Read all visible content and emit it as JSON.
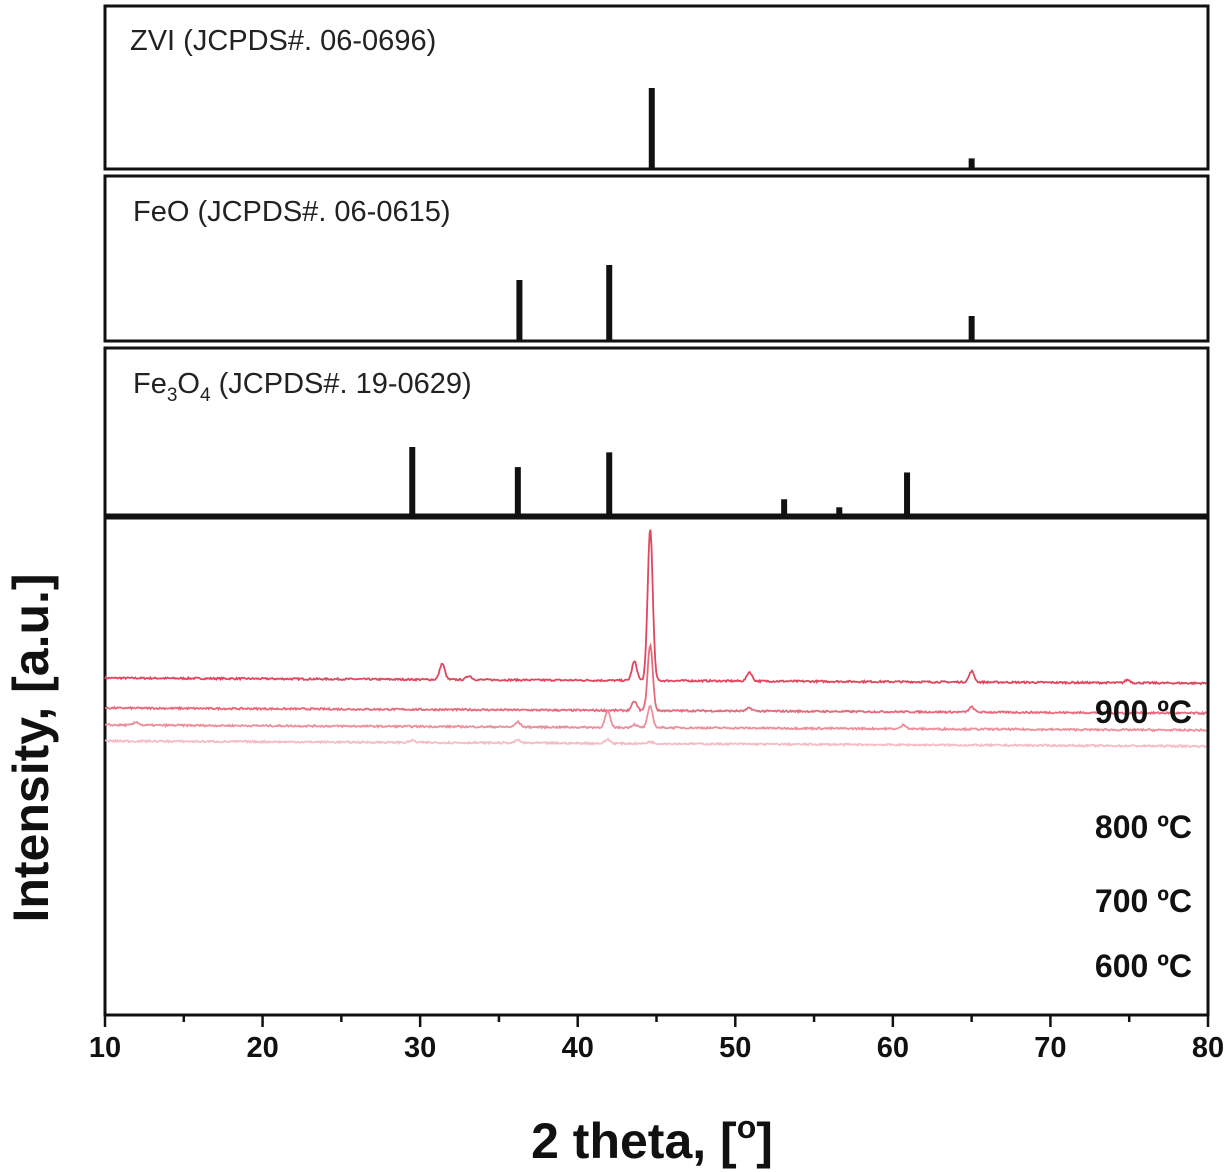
{
  "chart_data": {
    "type": "line",
    "xlabel": "2 theta, [o]",
    "xlabel_main": "2 theta, [",
    "xlabel_sup": "o",
    "xlabel_end": "]",
    "ylabel": "Intensity, [a.u.]",
    "xlim": [
      10,
      80
    ],
    "x_ticks": [
      10,
      20,
      30,
      40,
      50,
      60,
      70,
      80
    ],
    "reference_patterns": [
      {
        "label": "ZVI (JCPDS#. 06-0696)",
        "label_main": "ZVI (JCPDS#. 06-0696)",
        "peaks": [
          {
            "x": 44.7,
            "intensity": 100
          },
          {
            "x": 65.0,
            "intensity": 12
          }
        ]
      },
      {
        "label": "FeO (JCPDS#. 06-0615)",
        "label_main": "FeO (JCPDS#. 06-0615)",
        "peaks": [
          {
            "x": 36.3,
            "intensity": 80
          },
          {
            "x": 42.0,
            "intensity": 100
          },
          {
            "x": 65.0,
            "intensity": 32
          }
        ]
      },
      {
        "label": "Fe3O4 (JCPDS#. 19-0629)",
        "label_parts": [
          "Fe",
          "3",
          "O",
          "4",
          " (JCPDS#. 19-0629)"
        ],
        "peaks": [
          {
            "x": 29.5,
            "intensity": 100
          },
          {
            "x": 36.2,
            "intensity": 70
          },
          {
            "x": 42.0,
            "intensity": 92
          },
          {
            "x": 53.1,
            "intensity": 22
          },
          {
            "x": 56.6,
            "intensity": 10
          },
          {
            "x": 60.9,
            "intensity": 62
          }
        ]
      }
    ],
    "series": [
      {
        "name": "900 ºC",
        "color": "#e0475e",
        "baseline": 2.2,
        "peaks": [
          {
            "x": 31.4,
            "h": 1.6
          },
          {
            "x": 33.1,
            "h": 0.4
          },
          {
            "x": 43.6,
            "h": 1.9
          },
          {
            "x": 44.6,
            "h": 15.2
          },
          {
            "x": 50.9,
            "h": 0.9
          },
          {
            "x": 65.0,
            "h": 1.1
          },
          {
            "x": 74.9,
            "h": 0.3
          }
        ]
      },
      {
        "name": "800 ºC",
        "color": "#e66a7c",
        "baseline": -0.8,
        "peaks": [
          {
            "x": 43.6,
            "h": 0.9
          },
          {
            "x": 44.6,
            "h": 6.6
          },
          {
            "x": 50.9,
            "h": 0.3
          },
          {
            "x": 65.0,
            "h": 0.5
          }
        ]
      },
      {
        "name": "700 ºC",
        "color": "#ec8f9d",
        "baseline": -2.5,
        "peaks": [
          {
            "x": 12.0,
            "h": 0.3
          },
          {
            "x": 36.2,
            "h": 0.5
          },
          {
            "x": 41.9,
            "h": 1.6
          },
          {
            "x": 43.6,
            "h": 0.3
          },
          {
            "x": 44.6,
            "h": 2.1
          },
          {
            "x": 60.7,
            "h": 0.4
          }
        ]
      },
      {
        "name": "600 ºC",
        "color": "#f4bcc5",
        "baseline": -4.1,
        "peaks": [
          {
            "x": 29.5,
            "h": 0.2
          },
          {
            "x": 36.2,
            "h": 0.3
          },
          {
            "x": 41.9,
            "h": 0.4
          },
          {
            "x": 44.6,
            "h": 0.2
          }
        ]
      }
    ]
  }
}
